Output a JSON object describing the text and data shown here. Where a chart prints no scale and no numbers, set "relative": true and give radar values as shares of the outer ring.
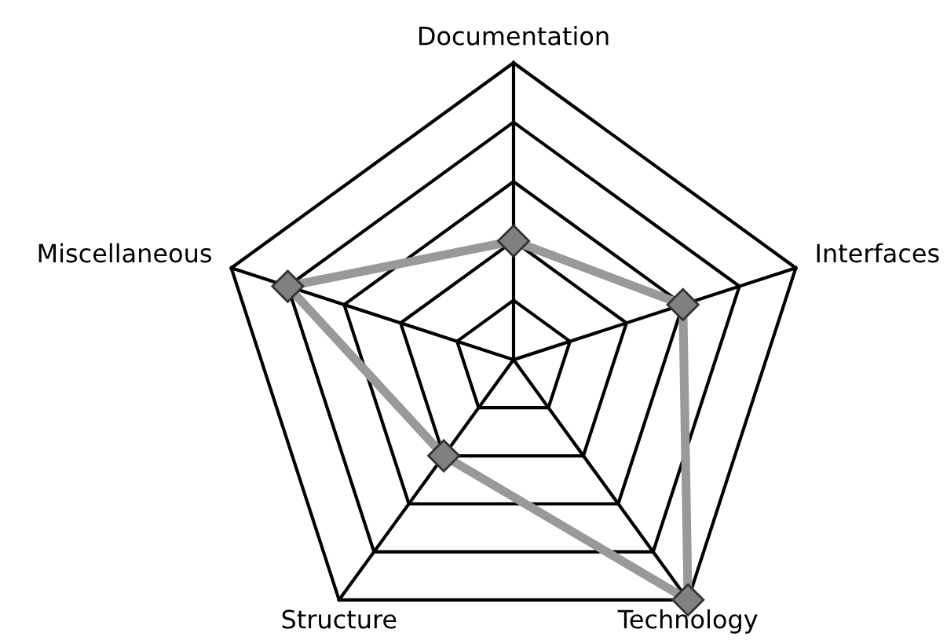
{
  "chart_data": {
    "type": "radar",
    "relative": true,
    "categories": [
      "Documentation",
      "Interfaces",
      "Technology",
      "Structure",
      "Miscellaneous"
    ],
    "series": [
      {
        "color": "#999999",
        "values": [
          0.4,
          0.6,
          1.0,
          0.4,
          0.8
        ]
      }
    ],
    "marker": "diamond",
    "line_style": "solid",
    "grid": true
  }
}
